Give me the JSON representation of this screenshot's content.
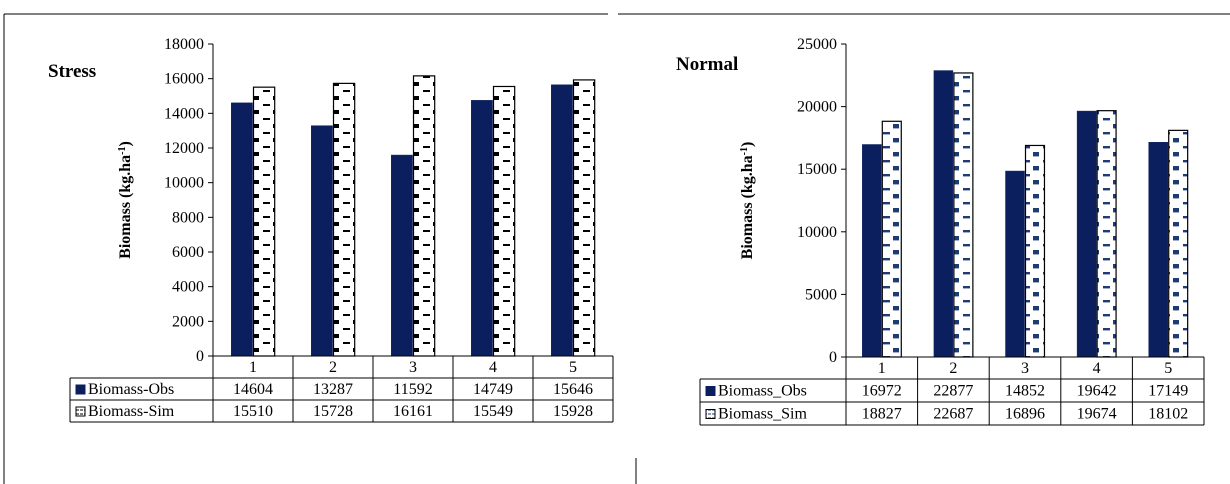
{
  "chart_data": [
    {
      "type": "bar",
      "title": "Stress",
      "ylabel_main": "Biomass (kg.ha",
      "ylabel_sup": "-1",
      "ylabel_close": ")",
      "ylim": [
        0,
        18000
      ],
      "yticks": [
        "0",
        "2000",
        "4000",
        "6000",
        "8000",
        "10000",
        "12000",
        "14000",
        "16000",
        "18000"
      ],
      "categories": [
        "1",
        "2",
        "3",
        "4",
        "5"
      ],
      "series": [
        {
          "name": "Biomass-Obs",
          "values": [
            14604,
            13287,
            11592,
            14749,
            15646
          ],
          "color": "#0b1f5e",
          "cells": [
            "14604",
            "13287",
            "11592",
            "14749",
            "15646"
          ]
        },
        {
          "name": "Biomass-Sim",
          "values": [
            15510,
            15728,
            16161,
            15549,
            15928
          ],
          "color": "#000000",
          "cells": [
            "15510",
            "15728",
            "16161",
            "15549",
            "15928"
          ]
        }
      ],
      "grid": false,
      "legend": "data-table"
    },
    {
      "type": "bar",
      "title": "Normal",
      "ylabel_main": "Biomass (kg.ha",
      "ylabel_sup": "-1",
      "ylabel_close": ")",
      "ylim": [
        0,
        25000
      ],
      "yticks": [
        "0",
        "5000",
        "10000",
        "15000",
        "20000",
        "25000"
      ],
      "categories": [
        "1",
        "2",
        "3",
        "4",
        "5"
      ],
      "series": [
        {
          "name": "Biomass_Obs",
          "values": [
            16972,
            22877,
            14852,
            19642,
            17149
          ],
          "color": "#0b1f5e",
          "cells": [
            "16972",
            "22877",
            "14852",
            "19642",
            "17149"
          ]
        },
        {
          "name": "Biomass_Sim",
          "values": [
            18827,
            22687,
            16896,
            19674,
            18102
          ],
          "color": "#1f3b73",
          "cells": [
            "18827",
            "22687",
            "16896",
            "19674",
            "18102"
          ]
        }
      ],
      "grid": false,
      "legend": "data-table"
    }
  ]
}
